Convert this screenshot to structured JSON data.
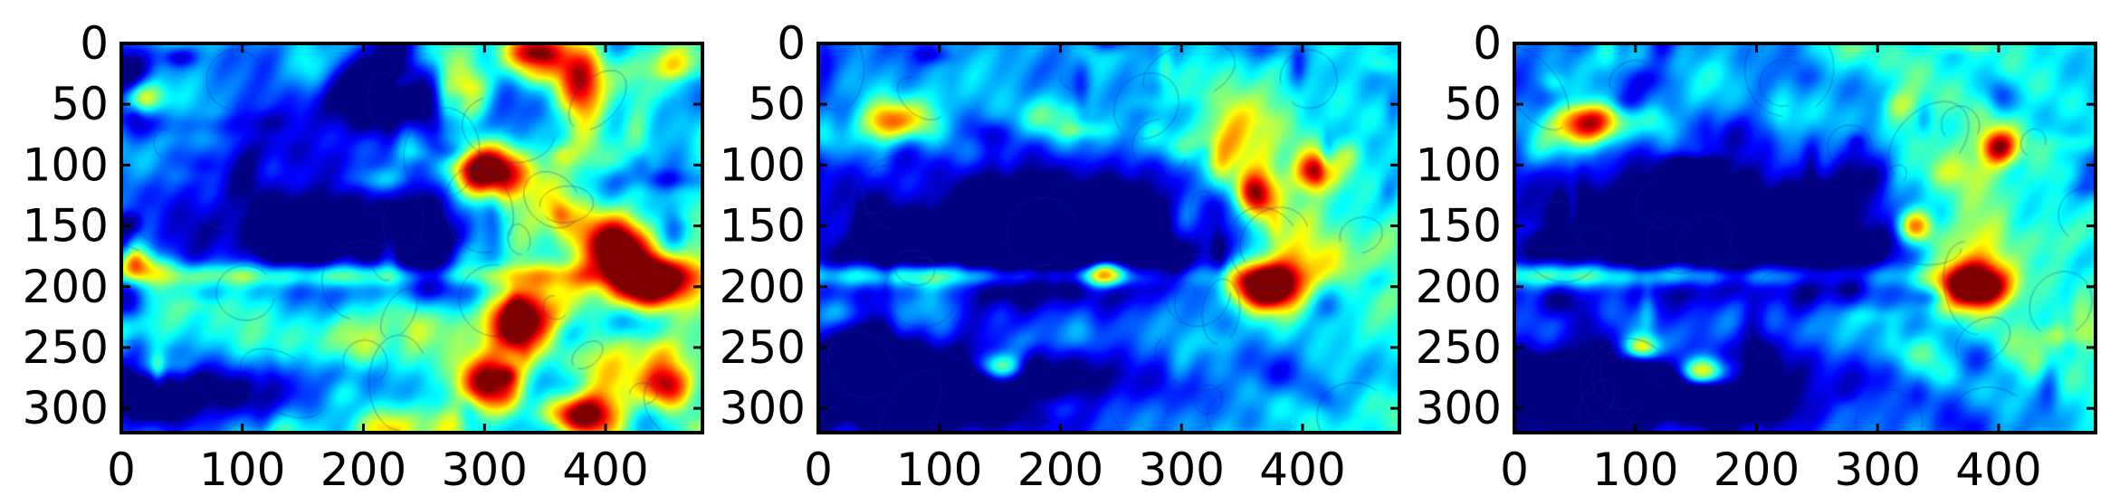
{
  "chart_data": [
    {
      "type": "heatmap",
      "title": "",
      "xlabel": "",
      "ylabel": "",
      "xlim": [
        0,
        480
      ],
      "ylim": [
        320,
        0
      ],
      "xticks": [
        0,
        100,
        200,
        300,
        400
      ],
      "yticks": [
        0,
        50,
        100,
        150,
        200,
        250,
        300
      ],
      "colormap": "jet",
      "image_size": [
        480,
        320
      ],
      "grid": false,
      "features": [
        {
          "x": 190,
          "y": 160,
          "w": 170,
          "h": 55,
          "v": -0.55
        },
        {
          "x": 245,
          "y": 45,
          "w": 130,
          "h": 40,
          "v": -0.45
        },
        {
          "x": 40,
          "y": 285,
          "w": 160,
          "h": 30,
          "v": -0.45
        },
        {
          "x": 120,
          "y": 230,
          "w": 130,
          "h": 45,
          "v": 0.2
        },
        {
          "x": 170,
          "y": 190,
          "w": 240,
          "h": 10,
          "v": 0.35
        },
        {
          "x": 8,
          "y": 180,
          "w": 18,
          "h": 14,
          "v": 0.6
        },
        {
          "x": 15,
          "y": 45,
          "w": 20,
          "h": 15,
          "v": 0.55
        },
        {
          "x": 340,
          "y": 10,
          "w": 25,
          "h": 18,
          "v": 0.75
        },
        {
          "x": 285,
          "y": 40,
          "w": 22,
          "h": 26,
          "v": 0.7
        },
        {
          "x": 380,
          "y": 35,
          "w": 20,
          "h": 40,
          "v": 0.65
        },
        {
          "x": 300,
          "y": 105,
          "w": 28,
          "h": 22,
          "v": 0.85
        },
        {
          "x": 410,
          "y": 165,
          "w": 25,
          "h": 22,
          "v": 0.7
        },
        {
          "x": 440,
          "y": 195,
          "w": 35,
          "h": 22,
          "v": 0.85
        },
        {
          "x": 330,
          "y": 230,
          "w": 30,
          "h": 22,
          "v": 0.75
        },
        {
          "x": 300,
          "y": 280,
          "w": 26,
          "h": 24,
          "v": 0.7
        },
        {
          "x": 380,
          "y": 305,
          "w": 30,
          "h": 18,
          "v": 0.7
        },
        {
          "x": 450,
          "y": 280,
          "w": 20,
          "h": 20,
          "v": 0.6
        },
        {
          "x": 350,
          "y": 160,
          "w": 60,
          "h": 60,
          "v": 0.45
        }
      ]
    },
    {
      "type": "heatmap",
      "title": "",
      "xlabel": "",
      "ylabel": "",
      "xlim": [
        0,
        480
      ],
      "ylim": [
        320,
        0
      ],
      "xticks": [
        0,
        100,
        200,
        300,
        400
      ],
      "yticks": [
        0,
        50,
        100,
        150,
        200,
        250,
        300
      ],
      "colormap": "jet",
      "image_size": [
        480,
        320
      ],
      "grid": false,
      "features": [
        {
          "x": 190,
          "y": 160,
          "w": 170,
          "h": 55,
          "v": -0.7
        },
        {
          "x": 80,
          "y": 280,
          "w": 180,
          "h": 40,
          "v": -0.6
        },
        {
          "x": 60,
          "y": 65,
          "w": 25,
          "h": 18,
          "v": 0.65
        },
        {
          "x": 150,
          "y": 265,
          "w": 20,
          "h": 12,
          "v": 0.55
        },
        {
          "x": 100,
          "y": 190,
          "w": 210,
          "h": 10,
          "v": 0.4
        },
        {
          "x": 235,
          "y": 190,
          "w": 20,
          "h": 10,
          "v": 0.5
        },
        {
          "x": 370,
          "y": 200,
          "w": 28,
          "h": 18,
          "v": 0.9
        },
        {
          "x": 360,
          "y": 125,
          "w": 15,
          "h": 18,
          "v": 0.6
        },
        {
          "x": 410,
          "y": 105,
          "w": 15,
          "h": 15,
          "v": 0.55
        },
        {
          "x": 375,
          "y": 155,
          "w": 70,
          "h": 80,
          "v": 0.3
        },
        {
          "x": 120,
          "y": 230,
          "w": 120,
          "h": 40,
          "v": 0.1
        }
      ]
    },
    {
      "type": "heatmap",
      "title": "",
      "xlabel": "",
      "ylabel": "",
      "xlim": [
        0,
        480
      ],
      "ylim": [
        320,
        0
      ],
      "xticks": [
        0,
        100,
        200,
        300,
        400
      ],
      "yticks": [
        0,
        50,
        100,
        150,
        200,
        250,
        300
      ],
      "colormap": "jet",
      "image_size": [
        480,
        320
      ],
      "grid": false,
      "features": [
        {
          "x": 190,
          "y": 155,
          "w": 170,
          "h": 55,
          "v": -0.7
        },
        {
          "x": 80,
          "y": 285,
          "w": 180,
          "h": 35,
          "v": -0.6
        },
        {
          "x": 60,
          "y": 65,
          "w": 28,
          "h": 18,
          "v": 0.7
        },
        {
          "x": 155,
          "y": 270,
          "w": 20,
          "h": 12,
          "v": 0.65
        },
        {
          "x": 105,
          "y": 250,
          "w": 14,
          "h": 10,
          "v": 0.5
        },
        {
          "x": 100,
          "y": 190,
          "w": 210,
          "h": 10,
          "v": 0.4
        },
        {
          "x": 380,
          "y": 200,
          "w": 28,
          "h": 16,
          "v": 0.95
        },
        {
          "x": 330,
          "y": 150,
          "w": 15,
          "h": 14,
          "v": 0.6
        },
        {
          "x": 400,
          "y": 85,
          "w": 15,
          "h": 14,
          "v": 0.55
        },
        {
          "x": 375,
          "y": 150,
          "w": 70,
          "h": 80,
          "v": 0.3
        },
        {
          "x": 120,
          "y": 230,
          "w": 120,
          "h": 40,
          "v": 0.1
        }
      ]
    }
  ]
}
